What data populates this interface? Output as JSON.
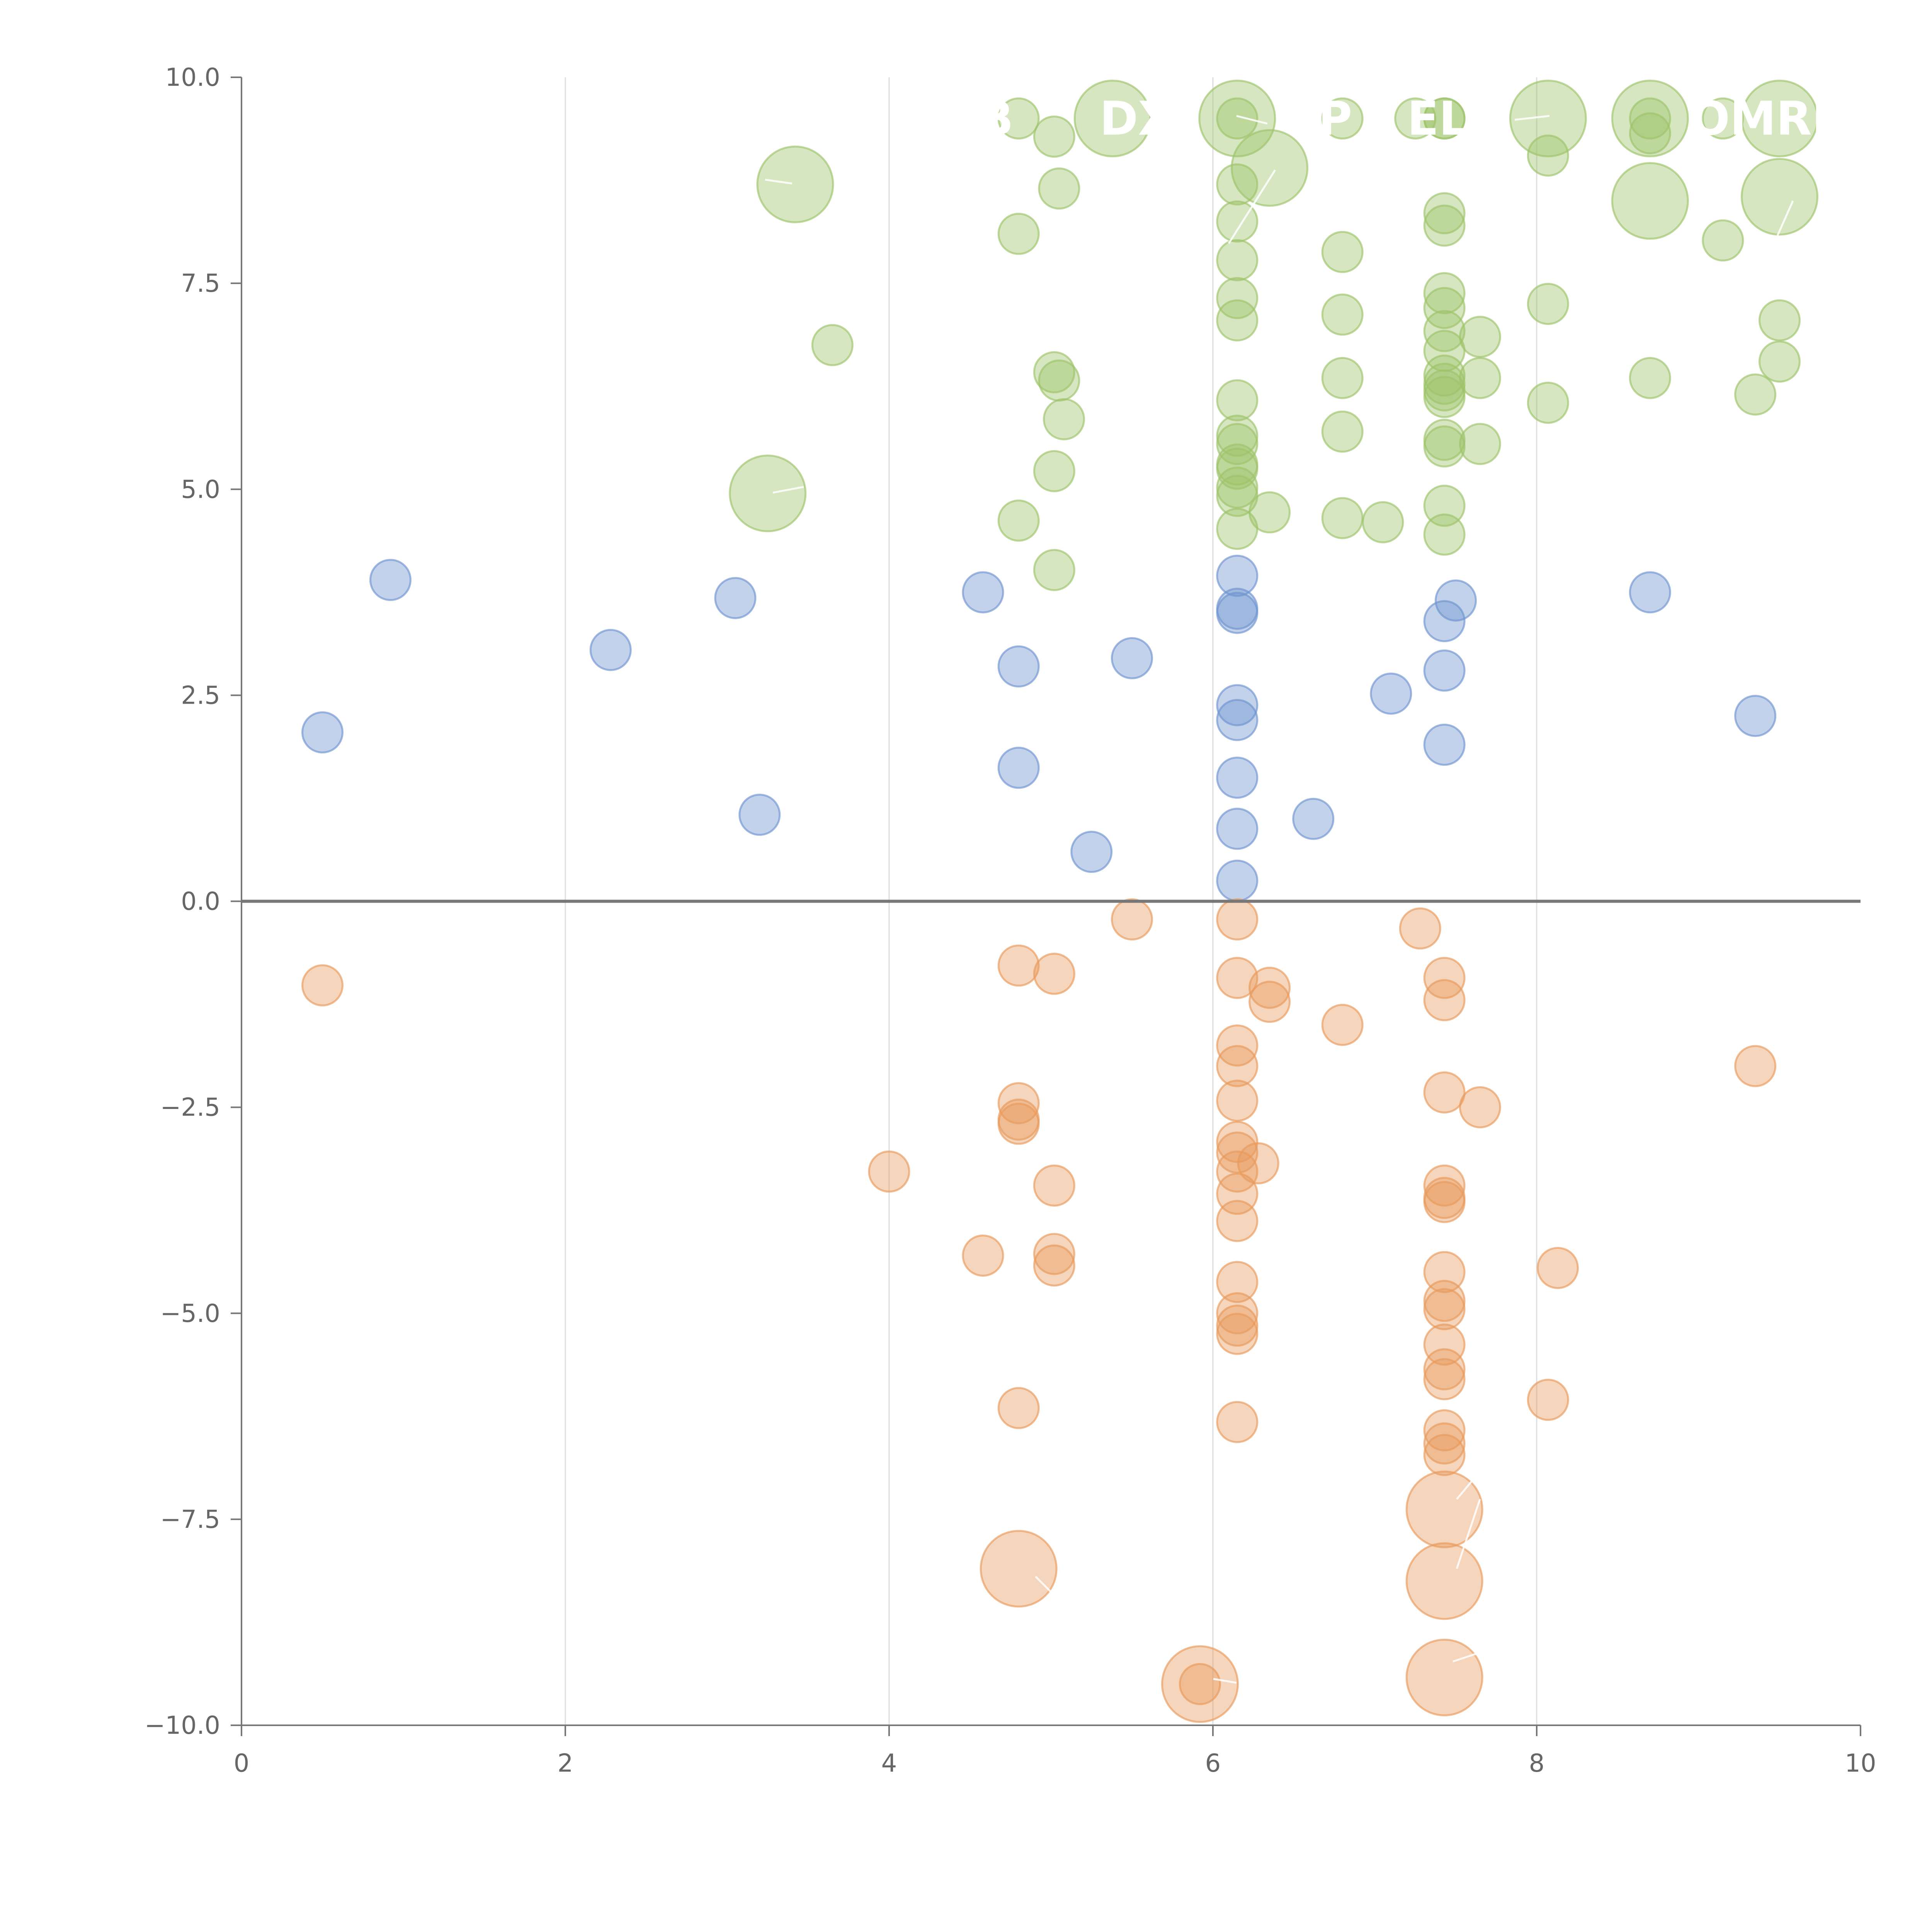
{
  "chart_data": {
    "type": "scatter",
    "title": "",
    "xlabel": "",
    "ylabel": "",
    "xlim": [
      0,
      10
    ],
    "ylim": [
      -10,
      10
    ],
    "x_ticks": [
      "0",
      "2",
      "4",
      "6",
      "8",
      "10"
    ],
    "y_ticks": [
      "10.0",
      "7.5",
      "5.0",
      "2.5",
      "0.0",
      "−2.5",
      "−5.0",
      "−7.5",
      "−10.0"
    ],
    "grid": "vertical",
    "reference_line_y": 0,
    "colors": {
      "positive_high": "#9dc36a",
      "positive_mid": "#6e93cf",
      "negative": "#e89a5c",
      "axis": "#777777",
      "grid": "#dddddd"
    },
    "annotations": [
      {
        "text": "B",
        "x": 4.55,
        "y": 9.5
      },
      {
        "text": "DX",
        "x": 5.3,
        "y": 9.5
      },
      {
        "text": "P",
        "x": 6.65,
        "y": 9.5
      },
      {
        "text": "EL",
        "x": 7.2,
        "y": 9.5
      },
      {
        "text": "OMRE",
        "x": 8.95,
        "y": 9.5
      }
    ],
    "series": [
      {
        "color": "#9dc36a",
        "points": [
          {
            "x": 3.42,
            "y": 8.7,
            "r": 3
          },
          {
            "x": 3.25,
            "y": 4.95,
            "r": 3
          },
          {
            "x": 3.65,
            "y": 6.75,
            "r": 1
          },
          {
            "x": 4.8,
            "y": 9.5,
            "r": 1
          },
          {
            "x": 4.8,
            "y": 8.1,
            "r": 1
          },
          {
            "x": 4.8,
            "y": 4.62,
            "r": 1
          },
          {
            "x": 5.02,
            "y": 9.28,
            "r": 1
          },
          {
            "x": 5.05,
            "y": 8.65,
            "r": 1
          },
          {
            "x": 5.02,
            "y": 6.42,
            "r": 1
          },
          {
            "x": 5.05,
            "y": 6.32,
            "r": 1
          },
          {
            "x": 5.08,
            "y": 5.85,
            "r": 1
          },
          {
            "x": 5.02,
            "y": 5.22,
            "r": 1
          },
          {
            "x": 5.02,
            "y": 4.02,
            "r": 1
          },
          {
            "x": 5.38,
            "y": 9.5,
            "r": 3
          },
          {
            "x": 6.15,
            "y": 9.5,
            "r": 3
          },
          {
            "x": 6.15,
            "y": 9.5,
            "r": 1
          },
          {
            "x": 6.15,
            "y": 8.7,
            "r": 1
          },
          {
            "x": 6.15,
            "y": 8.25,
            "r": 1
          },
          {
            "x": 6.15,
            "y": 7.78,
            "r": 1
          },
          {
            "x": 6.15,
            "y": 7.32,
            "r": 1
          },
          {
            "x": 6.15,
            "y": 7.05,
            "r": 1
          },
          {
            "x": 6.15,
            "y": 6.08,
            "r": 1
          },
          {
            "x": 6.15,
            "y": 5.65,
            "r": 1
          },
          {
            "x": 6.15,
            "y": 5.55,
            "r": 1
          },
          {
            "x": 6.15,
            "y": 5.3,
            "r": 1
          },
          {
            "x": 6.15,
            "y": 5.25,
            "r": 1
          },
          {
            "x": 6.15,
            "y": 5.02,
            "r": 1
          },
          {
            "x": 6.15,
            "y": 4.92,
            "r": 1
          },
          {
            "x": 6.15,
            "y": 4.52,
            "r": 1
          },
          {
            "x": 6.35,
            "y": 8.9,
            "r": 3
          },
          {
            "x": 6.35,
            "y": 4.72,
            "r": 1
          },
          {
            "x": 6.8,
            "y": 9.5,
            "r": 1
          },
          {
            "x": 6.8,
            "y": 7.88,
            "r": 1
          },
          {
            "x": 6.8,
            "y": 7.12,
            "r": 1
          },
          {
            "x": 6.8,
            "y": 6.35,
            "r": 1
          },
          {
            "x": 6.8,
            "y": 5.7,
            "r": 1
          },
          {
            "x": 6.8,
            "y": 4.65,
            "r": 1
          },
          {
            "x": 7.05,
            "y": 4.6,
            "r": 1
          },
          {
            "x": 7.25,
            "y": 9.5,
            "r": 1
          },
          {
            "x": 7.43,
            "y": 9.5,
            "r": 1
          },
          {
            "x": 7.43,
            "y": 9.5,
            "r": 1
          },
          {
            "x": 7.43,
            "y": 8.35,
            "r": 1
          },
          {
            "x": 7.43,
            "y": 8.2,
            "r": 1
          },
          {
            "x": 7.43,
            "y": 7.38,
            "r": 1
          },
          {
            "x": 7.43,
            "y": 7.2,
            "r": 1
          },
          {
            "x": 7.43,
            "y": 6.92,
            "r": 1
          },
          {
            "x": 7.43,
            "y": 6.68,
            "r": 1
          },
          {
            "x": 7.43,
            "y": 6.38,
            "r": 1
          },
          {
            "x": 7.43,
            "y": 6.28,
            "r": 1
          },
          {
            "x": 7.43,
            "y": 6.2,
            "r": 1
          },
          {
            "x": 7.43,
            "y": 6.12,
            "r": 1
          },
          {
            "x": 7.43,
            "y": 5.6,
            "r": 1
          },
          {
            "x": 7.43,
            "y": 5.52,
            "r": 1
          },
          {
            "x": 7.43,
            "y": 4.8,
            "r": 1
          },
          {
            "x": 7.43,
            "y": 4.45,
            "r": 1
          },
          {
            "x": 7.65,
            "y": 6.85,
            "r": 1
          },
          {
            "x": 7.65,
            "y": 6.35,
            "r": 1
          },
          {
            "x": 7.65,
            "y": 5.55,
            "r": 1
          },
          {
            "x": 8.07,
            "y": 9.5,
            "r": 3
          },
          {
            "x": 8.07,
            "y": 9.05,
            "r": 1
          },
          {
            "x": 8.07,
            "y": 7.25,
            "r": 1
          },
          {
            "x": 8.07,
            "y": 6.05,
            "r": 1
          },
          {
            "x": 8.7,
            "y": 9.5,
            "r": 3
          },
          {
            "x": 8.7,
            "y": 9.5,
            "r": 1
          },
          {
            "x": 8.7,
            "y": 9.32,
            "r": 1
          },
          {
            "x": 8.7,
            "y": 8.5,
            "r": 3
          },
          {
            "x": 8.7,
            "y": 6.35,
            "r": 1
          },
          {
            "x": 9.15,
            "y": 9.5,
            "r": 1
          },
          {
            "x": 9.15,
            "y": 8.02,
            "r": 1
          },
          {
            "x": 9.35,
            "y": 6.15,
            "r": 1
          },
          {
            "x": 9.5,
            "y": 9.5,
            "r": 3
          },
          {
            "x": 9.5,
            "y": 8.55,
            "r": 3
          },
          {
            "x": 9.5,
            "y": 7.05,
            "r": 1
          },
          {
            "x": 9.5,
            "y": 6.55,
            "r": 1
          }
        ]
      },
      {
        "color": "#6e93cf",
        "points": [
          {
            "x": 0.5,
            "y": 2.05,
            "r": 1
          },
          {
            "x": 0.92,
            "y": 3.9,
            "r": 1
          },
          {
            "x": 2.28,
            "y": 3.05,
            "r": 1
          },
          {
            "x": 3.05,
            "y": 3.68,
            "r": 1
          },
          {
            "x": 3.2,
            "y": 1.05,
            "r": 1
          },
          {
            "x": 4.58,
            "y": 3.75,
            "r": 1
          },
          {
            "x": 4.8,
            "y": 2.85,
            "r": 1
          },
          {
            "x": 4.8,
            "y": 1.62,
            "r": 1
          },
          {
            "x": 5.25,
            "y": 0.6,
            "r": 1
          },
          {
            "x": 5.5,
            "y": 2.95,
            "r": 1
          },
          {
            "x": 6.15,
            "y": 3.95,
            "r": 1
          },
          {
            "x": 6.15,
            "y": 3.55,
            "r": 1
          },
          {
            "x": 6.15,
            "y": 3.5,
            "r": 1
          },
          {
            "x": 6.15,
            "y": 2.38,
            "r": 1
          },
          {
            "x": 6.15,
            "y": 2.2,
            "r": 1
          },
          {
            "x": 6.15,
            "y": 1.5,
            "r": 1
          },
          {
            "x": 6.15,
            "y": 0.88,
            "r": 1
          },
          {
            "x": 6.15,
            "y": 0.25,
            "r": 1
          },
          {
            "x": 6.62,
            "y": 1.0,
            "r": 1
          },
          {
            "x": 7.1,
            "y": 2.52,
            "r": 1
          },
          {
            "x": 7.43,
            "y": 3.4,
            "r": 1
          },
          {
            "x": 7.43,
            "y": 2.8,
            "r": 1
          },
          {
            "x": 7.43,
            "y": 1.9,
            "r": 1
          },
          {
            "x": 7.5,
            "y": 3.65,
            "r": 1
          },
          {
            "x": 8.7,
            "y": 3.75,
            "r": 1
          },
          {
            "x": 9.35,
            "y": 2.25,
            "r": 1
          }
        ]
      },
      {
        "color": "#e89a5c",
        "points": [
          {
            "x": 0.5,
            "y": -1.02,
            "r": 1
          },
          {
            "x": 4.0,
            "y": -3.28,
            "r": 1
          },
          {
            "x": 4.58,
            "y": -4.3,
            "r": 1
          },
          {
            "x": 4.8,
            "y": -0.78,
            "r": 1
          },
          {
            "x": 4.8,
            "y": -2.45,
            "r": 1
          },
          {
            "x": 4.8,
            "y": -2.65,
            "r": 1
          },
          {
            "x": 4.8,
            "y": -2.7,
            "r": 1
          },
          {
            "x": 4.8,
            "y": -6.15,
            "r": 1
          },
          {
            "x": 4.8,
            "y": -8.1,
            "r": 3
          },
          {
            "x": 5.02,
            "y": -0.88,
            "r": 1
          },
          {
            "x": 5.02,
            "y": -3.45,
            "r": 1
          },
          {
            "x": 5.02,
            "y": -4.28,
            "r": 1
          },
          {
            "x": 5.02,
            "y": -4.42,
            "r": 1
          },
          {
            "x": 5.5,
            "y": -0.22,
            "r": 1
          },
          {
            "x": 5.92,
            "y": -9.5,
            "r": 3
          },
          {
            "x": 5.92,
            "y": -9.5,
            "r": 1
          },
          {
            "x": 6.15,
            "y": -0.22,
            "r": 1
          },
          {
            "x": 6.15,
            "y": -0.93,
            "r": 1
          },
          {
            "x": 6.15,
            "y": -1.75,
            "r": 1
          },
          {
            "x": 6.15,
            "y": -2.0,
            "r": 1
          },
          {
            "x": 6.15,
            "y": -2.42,
            "r": 1
          },
          {
            "x": 6.15,
            "y": -2.92,
            "r": 1
          },
          {
            "x": 6.15,
            "y": -3.05,
            "r": 1
          },
          {
            "x": 6.15,
            "y": -3.28,
            "r": 1
          },
          {
            "x": 6.15,
            "y": -3.55,
            "r": 1
          },
          {
            "x": 6.15,
            "y": -3.88,
            "r": 1
          },
          {
            "x": 6.15,
            "y": -4.62,
            "r": 1
          },
          {
            "x": 6.15,
            "y": -5.0,
            "r": 1
          },
          {
            "x": 6.15,
            "y": -5.15,
            "r": 1
          },
          {
            "x": 6.15,
            "y": -5.25,
            "r": 1
          },
          {
            "x": 6.15,
            "y": -6.32,
            "r": 1
          },
          {
            "x": 6.28,
            "y": -3.18,
            "r": 1
          },
          {
            "x": 6.35,
            "y": -1.05,
            "r": 1
          },
          {
            "x": 6.35,
            "y": -1.22,
            "r": 1
          },
          {
            "x": 6.8,
            "y": -1.5,
            "r": 1
          },
          {
            "x": 7.28,
            "y": -0.33,
            "r": 1
          },
          {
            "x": 7.43,
            "y": -0.93,
            "r": 1
          },
          {
            "x": 7.43,
            "y": -1.2,
            "r": 1
          },
          {
            "x": 7.43,
            "y": -2.32,
            "r": 1
          },
          {
            "x": 7.43,
            "y": -3.45,
            "r": 1
          },
          {
            "x": 7.43,
            "y": -3.6,
            "r": 1
          },
          {
            "x": 7.43,
            "y": -3.65,
            "r": 1
          },
          {
            "x": 7.43,
            "y": -4.5,
            "r": 1
          },
          {
            "x": 7.43,
            "y": -4.85,
            "r": 1
          },
          {
            "x": 7.43,
            "y": -4.95,
            "r": 1
          },
          {
            "x": 7.43,
            "y": -5.38,
            "r": 1
          },
          {
            "x": 7.43,
            "y": -5.68,
            "r": 1
          },
          {
            "x": 7.43,
            "y": -5.8,
            "r": 1
          },
          {
            "x": 7.43,
            "y": -6.42,
            "r": 1
          },
          {
            "x": 7.43,
            "y": -6.58,
            "r": 1
          },
          {
            "x": 7.43,
            "y": -6.72,
            "r": 1
          },
          {
            "x": 7.43,
            "y": -7.38,
            "r": 3
          },
          {
            "x": 7.43,
            "y": -8.25,
            "r": 3
          },
          {
            "x": 7.43,
            "y": -9.42,
            "r": 3
          },
          {
            "x": 7.65,
            "y": -2.5,
            "r": 1
          },
          {
            "x": 8.07,
            "y": -6.05,
            "r": 1
          },
          {
            "x": 8.13,
            "y": -4.45,
            "r": 1
          },
          {
            "x": 9.35,
            "y": -2.0,
            "r": 1
          }
        ]
      }
    ]
  }
}
